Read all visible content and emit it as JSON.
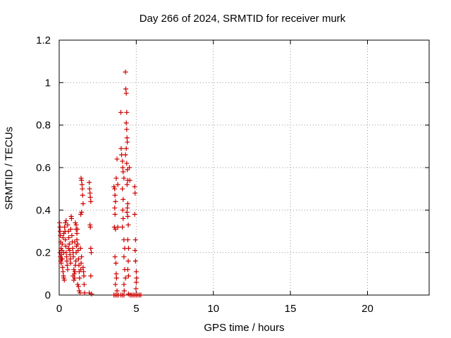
{
  "chart_data": {
    "type": "scatter",
    "title": "Day 266 of 2024, SRMTID for receiver murk",
    "xlabel": "GPS time / hours",
    "ylabel": "SRMTID / TECUs",
    "xlim": [
      0,
      24
    ],
    "ylim": [
      0,
      1.2
    ],
    "xticks": [
      0,
      5,
      10,
      15,
      20
    ],
    "yticks": [
      0,
      0.2,
      0.4,
      0.6,
      0.8,
      1,
      1.2
    ],
    "ytick_labels": [
      "0",
      "0.2",
      "0.4",
      "0.6",
      "0.8",
      "1",
      "1.2"
    ],
    "grid": true,
    "marker": "+",
    "series": [
      {
        "color": "#cc0000",
        "points": [
          [
            0.03,
            0.34
          ],
          [
            0.05,
            0.32
          ],
          [
            0.06,
            0.3
          ],
          [
            0.08,
            0.28
          ],
          [
            0.1,
            0.25
          ],
          [
            0.12,
            0.22
          ],
          [
            0.05,
            0.2
          ],
          [
            0.08,
            0.18
          ],
          [
            0.1,
            0.16
          ],
          [
            0.13,
            0.15
          ],
          [
            0.15,
            0.19
          ],
          [
            0.18,
            0.21
          ],
          [
            0.2,
            0.17
          ],
          [
            0.22,
            0.13
          ],
          [
            0.25,
            0.11
          ],
          [
            0.28,
            0.09
          ],
          [
            0.3,
            0.08
          ],
          [
            0.33,
            0.07
          ],
          [
            0.2,
            0.24
          ],
          [
            0.25,
            0.27
          ],
          [
            0.3,
            0.29
          ],
          [
            0.35,
            0.32
          ],
          [
            0.38,
            0.3
          ],
          [
            0.4,
            0.26
          ],
          [
            0.42,
            0.23
          ],
          [
            0.45,
            0.2
          ],
          [
            0.48,
            0.18
          ],
          [
            0.5,
            0.16
          ],
          [
            0.52,
            0.14
          ],
          [
            0.55,
            0.12
          ],
          [
            0.4,
            0.34
          ],
          [
            0.45,
            0.35
          ],
          [
            0.55,
            0.33
          ],
          [
            0.6,
            0.3
          ],
          [
            0.62,
            0.27
          ],
          [
            0.65,
            0.24
          ],
          [
            0.68,
            0.21
          ],
          [
            0.7,
            0.19
          ],
          [
            0.72,
            0.17
          ],
          [
            0.75,
            0.15
          ],
          [
            0.78,
            0.37
          ],
          [
            0.8,
            0.36
          ],
          [
            0.75,
            0.31
          ],
          [
            0.82,
            0.28
          ],
          [
            0.85,
            0.25
          ],
          [
            0.88,
            0.22
          ],
          [
            0.9,
            0.2
          ],
          [
            0.92,
            0.18
          ],
          [
            0.95,
            0.12
          ],
          [
            0.98,
            0.1
          ],
          [
            0.9,
            0.09
          ],
          [
            0.95,
            0.07
          ],
          [
            1.0,
            0.08
          ],
          [
            1.02,
            0.11
          ],
          [
            1.05,
            0.14
          ],
          [
            1.08,
            0.16
          ],
          [
            1.1,
            0.2
          ],
          [
            1.12,
            0.23
          ],
          [
            1.15,
            0.26
          ],
          [
            1.18,
            0.31
          ],
          [
            1.05,
            0.34
          ],
          [
            1.1,
            0.33
          ],
          [
            1.15,
            0.29
          ],
          [
            1.2,
            0.24
          ],
          [
            1.22,
            0.21
          ],
          [
            1.25,
            0.17
          ],
          [
            1.28,
            0.14
          ],
          [
            1.3,
            0.11
          ],
          [
            1.32,
            0.08
          ],
          [
            1.2,
            0.05
          ],
          [
            1.25,
            0.04
          ],
          [
            1.3,
            0.02
          ],
          [
            1.35,
            0.01
          ],
          [
            1.4,
            0.12
          ],
          [
            1.42,
            0.15
          ],
          [
            1.45,
            0.18
          ],
          [
            1.38,
            0.22
          ],
          [
            1.4,
            0.38
          ],
          [
            1.45,
            0.39
          ],
          [
            1.42,
            0.55
          ],
          [
            1.45,
            0.54
          ],
          [
            1.48,
            0.52
          ],
          [
            1.5,
            0.5
          ],
          [
            1.52,
            0.47
          ],
          [
            1.55,
            0.43
          ],
          [
            1.55,
            0.13
          ],
          [
            1.58,
            0.11
          ],
          [
            1.6,
            0.09
          ],
          [
            1.62,
            0.05
          ],
          [
            1.65,
            0.01
          ],
          [
            1.95,
            0.53
          ],
          [
            1.97,
            0.5
          ],
          [
            2.0,
            0.48
          ],
          [
            2.02,
            0.46
          ],
          [
            2.05,
            0.44
          ],
          [
            2.0,
            0.33
          ],
          [
            2.02,
            0.32
          ],
          [
            2.05,
            0.22
          ],
          [
            2.08,
            0.2
          ],
          [
            2.05,
            0.09
          ],
          [
            1.95,
            0.01
          ],
          [
            2.1,
            0.005
          ],
          [
            3.55,
            0.51
          ],
          [
            3.6,
            0.5
          ],
          [
            3.62,
            0.47
          ],
          [
            3.65,
            0.44
          ],
          [
            3.6,
            0.41
          ],
          [
            3.62,
            0.38
          ],
          [
            3.58,
            0.32
          ],
          [
            3.65,
            0.31
          ],
          [
            3.62,
            0.18
          ],
          [
            3.68,
            0.15
          ],
          [
            3.7,
            0.1
          ],
          [
            3.72,
            0.08
          ],
          [
            3.65,
            0.05
          ],
          [
            3.7,
            0.55
          ],
          [
            3.75,
            0.64
          ],
          [
            3.8,
            0.52
          ],
          [
            3.8,
            0.32
          ],
          [
            3.75,
            0.02
          ],
          [
            4.0,
            0.86
          ],
          [
            4.02,
            0.69
          ],
          [
            4.05,
            0.66
          ],
          [
            4.1,
            0.63
          ],
          [
            4.12,
            0.6
          ],
          [
            4.15,
            0.58
          ],
          [
            4.2,
            0.55
          ],
          [
            4.1,
            0.5
          ],
          [
            4.15,
            0.45
          ],
          [
            4.12,
            0.4
          ],
          [
            4.15,
            0.36
          ],
          [
            4.1,
            0.32
          ],
          [
            4.2,
            0.26
          ],
          [
            4.25,
            0.22
          ],
          [
            4.2,
            0.18
          ],
          [
            4.25,
            0.12
          ],
          [
            4.3,
            0.08
          ],
          [
            4.2,
            0.05
          ],
          [
            4.22,
            0.02
          ],
          [
            4.3,
            1.05
          ],
          [
            4.32,
            0.97
          ],
          [
            4.35,
            0.95
          ],
          [
            4.38,
            0.86
          ],
          [
            4.35,
            0.81
          ],
          [
            4.38,
            0.78
          ],
          [
            4.4,
            0.74
          ],
          [
            4.42,
            0.72
          ],
          [
            4.35,
            0.69
          ],
          [
            4.3,
            0.66
          ],
          [
            4.38,
            0.62
          ],
          [
            4.42,
            0.59
          ],
          [
            4.45,
            0.54
          ],
          [
            4.4,
            0.52
          ],
          [
            4.45,
            0.43
          ],
          [
            4.42,
            0.41
          ],
          [
            4.4,
            0.39
          ],
          [
            4.45,
            0.37
          ],
          [
            4.48,
            0.33
          ],
          [
            4.45,
            0.26
          ],
          [
            4.5,
            0.22
          ],
          [
            4.48,
            0.16
          ],
          [
            4.45,
            0.12
          ],
          [
            4.5,
            0.09
          ],
          [
            4.55,
            0.6
          ],
          [
            4.58,
            0.54
          ],
          [
            4.5,
            0.005
          ],
          [
            4.9,
            0.51
          ],
          [
            4.92,
            0.48
          ],
          [
            4.9,
            0.38
          ],
          [
            4.95,
            0.26
          ],
          [
            4.92,
            0.21
          ],
          [
            4.95,
            0.16
          ],
          [
            5.0,
            0.11
          ],
          [
            5.02,
            0.08
          ],
          [
            5.0,
            0.06
          ],
          [
            4.98,
            0.03
          ],
          [
            3.55,
            0.0
          ],
          [
            3.65,
            0.0
          ],
          [
            3.75,
            0.0
          ],
          [
            3.85,
            0.0
          ],
          [
            4.0,
            0.0
          ],
          [
            4.1,
            0.0
          ],
          [
            4.2,
            0.0
          ],
          [
            4.6,
            0.0
          ],
          [
            4.7,
            0.0
          ],
          [
            4.8,
            0.0
          ],
          [
            4.9,
            0.0
          ],
          [
            5.0,
            0.0
          ],
          [
            5.1,
            0.0
          ],
          [
            5.2,
            0.0
          ],
          [
            5.3,
            0.0
          ],
          [
            1.1,
            0.31
          ],
          [
            1.0,
            0.25
          ],
          [
            0.6,
            0.22
          ],
          [
            0.3,
            0.2
          ],
          [
            0.15,
            0.17
          ]
        ]
      }
    ]
  }
}
